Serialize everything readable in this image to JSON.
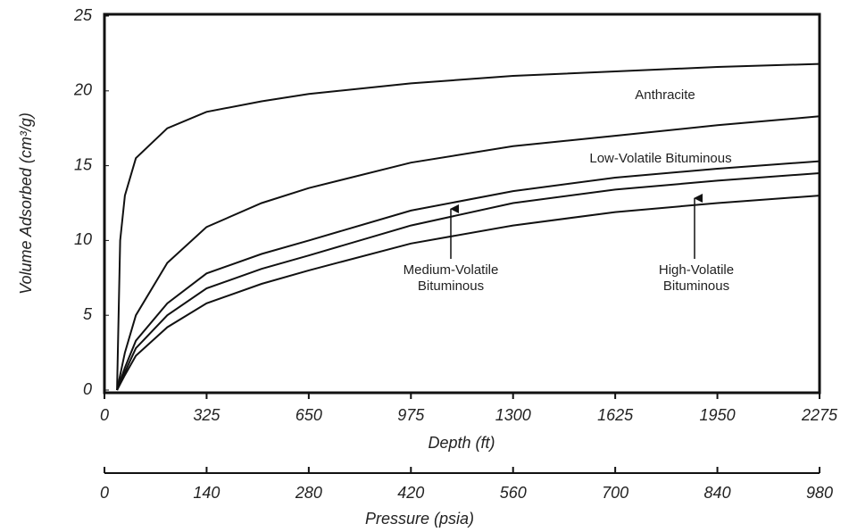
{
  "chart_data": {
    "type": "line",
    "x": [
      40,
      50,
      65,
      100,
      200,
      325,
      500,
      650,
      975,
      1300,
      1625,
      1950,
      2275
    ],
    "series": [
      {
        "name": "Anthracite",
        "color": "#111111",
        "values": [
          0,
          10,
          13,
          15.5,
          17.5,
          18.6,
          19.3,
          19.8,
          20.5,
          21,
          21.3,
          21.6,
          21.8
        ]
      },
      {
        "name": "Low-Volatile Bituminous",
        "color": "#111111",
        "values": [
          0,
          1,
          2.5,
          5,
          8.5,
          10.9,
          12.5,
          13.5,
          15.2,
          16.3,
          17,
          17.7,
          18.3
        ]
      },
      {
        "name": "Medium-Volatile Bituminous",
        "color": "#111111",
        "values": [
          0,
          0.6,
          1.5,
          3.3,
          5.8,
          7.8,
          9.1,
          10,
          12,
          13.3,
          14.2,
          14.8,
          15.3
        ]
      },
      {
        "name": "High-Volatile Bituminous",
        "color": "#111111",
        "values": [
          0,
          0.5,
          1.2,
          2.8,
          5,
          6.8,
          8.1,
          9,
          11,
          12.5,
          13.4,
          14,
          14.5
        ]
      },
      {
        "color": "#111111",
        "values": [
          0,
          0.4,
          1,
          2.3,
          4.2,
          5.8,
          7.1,
          8,
          9.8,
          11,
          11.9,
          12.5,
          13
        ]
      }
    ],
    "xlabel": "Depth (ft)",
    "ylabel": "Volume Adsorbed (cm³/g)",
    "xlim": [
      0,
      2275
    ],
    "xticks": [
      0,
      325,
      650,
      975,
      1300,
      1625,
      1950,
      2275
    ],
    "ylim": [
      0,
      25
    ],
    "yticks": [
      0,
      5,
      10,
      15,
      20,
      25
    ],
    "x2label": "Pressure (psia)",
    "x2lim": [
      0,
      980
    ],
    "x2ticks": [
      0,
      140,
      280,
      420,
      560,
      700,
      840,
      980
    ],
    "grid": false
  }
}
